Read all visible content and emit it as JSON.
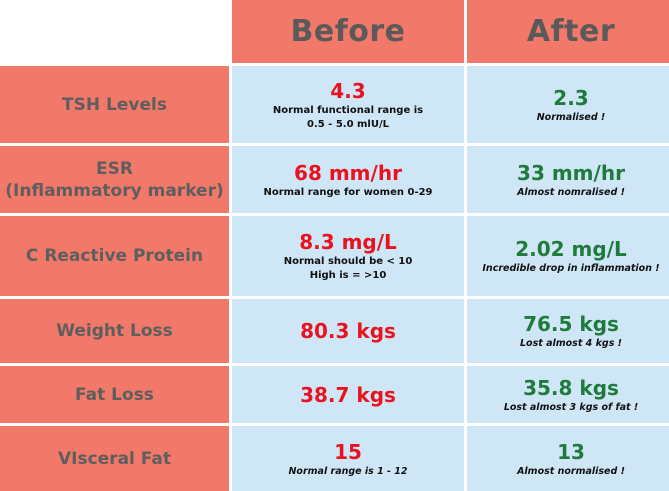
{
  "header": {
    "before": "Before",
    "after": "After"
  },
  "rows": [
    {
      "label_lines": [
        "TSH Levels"
      ],
      "before": {
        "value": "4.3",
        "notes": [
          "Normal functional range is",
          "0.5 -  5.0 mlU/L"
        ]
      },
      "after": {
        "value": "2.3",
        "notes": [
          "Normalised !"
        ]
      }
    },
    {
      "label_lines": [
        "ESR",
        "(Inflammatory marker)"
      ],
      "before": {
        "value": "68 mm/hr",
        "notes": [
          "Normal range for women  0-29"
        ]
      },
      "after": {
        "value": "33 mm/hr",
        "notes": [
          "Almost nomralised !"
        ]
      }
    },
    {
      "label_lines": [
        "C Reactive Protein"
      ],
      "before": {
        "value": "8.3 mg/L",
        "notes": [
          "Normal should be < 10",
          "High is = >10"
        ]
      },
      "after": {
        "value": "2.02 mg/L",
        "notes": [
          "Incredible drop in inflammation !"
        ]
      }
    },
    {
      "label_lines": [
        "Weight Loss"
      ],
      "before": {
        "value": "80.3 kgs",
        "notes": []
      },
      "after": {
        "value": "76.5 kgs",
        "notes": [
          "Lost almost 4 kgs !"
        ]
      }
    },
    {
      "label_lines": [
        "Fat Loss"
      ],
      "before": {
        "value": "38.7 kgs",
        "notes": []
      },
      "after": {
        "value": "35.8 kgs",
        "notes": [
          "Lost almost 3 kgs of fat !"
        ]
      }
    },
    {
      "label_lines": [
        "VIsceral Fat"
      ],
      "before": {
        "value": "15",
        "notes": [
          "Normal range is 1 - 12"
        ]
      },
      "after": {
        "value": "13",
        "notes": [
          "Almost normalised !"
        ]
      }
    }
  ],
  "colors": {
    "header_bg": "#f2786a",
    "value_bg": "#cfe6f6",
    "before_value": "#e8131f",
    "after_value": "#1f7a3c",
    "header_text": "#5a5a5a"
  }
}
